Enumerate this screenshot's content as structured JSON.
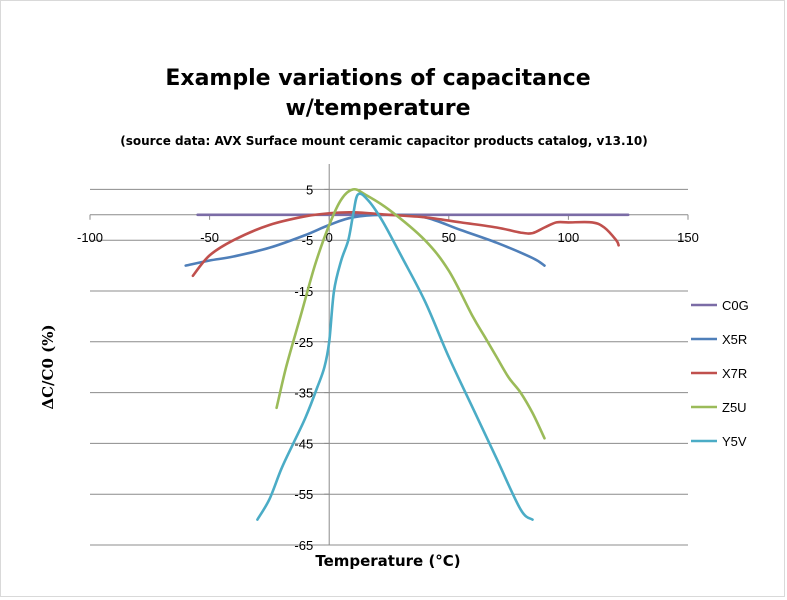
{
  "chart_data": {
    "type": "line",
    "title_line1": "Example variations of capacitance",
    "title_line2": "w/temperature",
    "subtitle": "(source data: AVX Surface mount ceramic capacitor products catalog, v13.10)",
    "xlabel": "Temperature (°C)",
    "ylabel": "ΔC/C0 (%)",
    "xlim": [
      -100,
      150
    ],
    "ylim": [
      -65,
      10
    ],
    "xticks": [
      -100,
      -50,
      0,
      50,
      100,
      150
    ],
    "yticks": [
      5,
      -5,
      -15,
      -25,
      -35,
      -45,
      -55,
      -65
    ],
    "grid": true,
    "legend_position": "right",
    "series": [
      {
        "name": "C0G",
        "color": "#7b6ca6",
        "x": [
          -55,
          0,
          50,
          100,
          125
        ],
        "y": [
          0,
          0,
          0,
          0,
          0
        ]
      },
      {
        "name": "X5R",
        "color": "#4f7fb9",
        "x": [
          -60,
          -50,
          -40,
          -25,
          -10,
          0,
          10,
          25,
          40,
          55,
          70,
          85,
          90
        ],
        "y": [
          -10,
          -9,
          -8.2,
          -6.5,
          -4,
          -2,
          -0.5,
          0,
          -0.5,
          -3,
          -5.5,
          -8.5,
          -10
        ]
      },
      {
        "name": "X7R",
        "color": "#c0504d",
        "x": [
          -57,
          -50,
          -40,
          -25,
          -10,
          0,
          10,
          25,
          40,
          55,
          70,
          80,
          85,
          90,
          95,
          100,
          110,
          115,
          120,
          121
        ],
        "y": [
          -12,
          -8,
          -5,
          -2,
          -0.3,
          0.3,
          0.5,
          0,
          -0.5,
          -1.5,
          -2.5,
          -3.5,
          -3.6,
          -2.5,
          -1.5,
          -1.5,
          -1.5,
          -2.5,
          -5,
          -6
        ]
      },
      {
        "name": "Z5U",
        "color": "#9bbb59",
        "x": [
          -22,
          -18,
          -12,
          -6,
          0,
          5,
          10,
          15,
          25,
          40,
          50,
          60,
          65,
          70,
          75,
          80,
          85,
          90
        ],
        "y": [
          -38,
          -30,
          -20,
          -10,
          -2,
          3,
          5,
          4,
          1,
          -5,
          -11,
          -20,
          -24,
          -28,
          -32,
          -35,
          -39,
          -44
        ]
      },
      {
        "name": "Y5V",
        "color": "#4bacc6",
        "x": [
          -30,
          -25,
          -20,
          -15,
          -10,
          -5,
          -2,
          0,
          2,
          5,
          8,
          10,
          12,
          16,
          22,
          30,
          40,
          50,
          60,
          70,
          80,
          85
        ],
        "y": [
          -60,
          -56,
          -50,
          -45,
          -40,
          -34,
          -30,
          -25,
          -15,
          -9,
          -5,
          0,
          4,
          3,
          -1,
          -8,
          -17,
          -28,
          -38,
          -48,
          -58,
          -60
        ]
      }
    ]
  }
}
